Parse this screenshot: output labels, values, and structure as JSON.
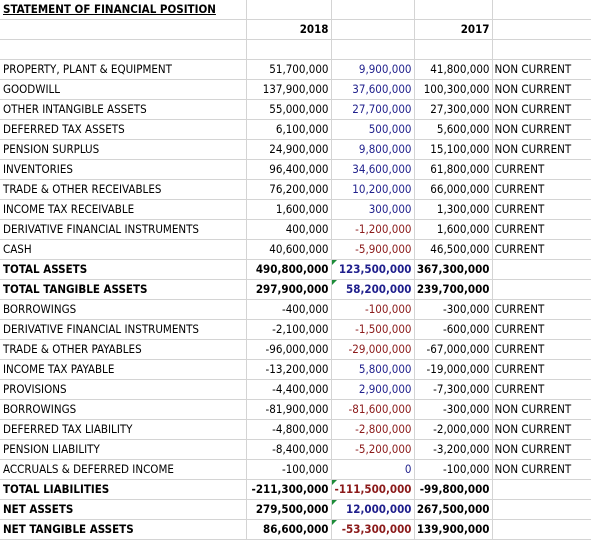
{
  "sheet": {
    "title": "STATEMENT OF FINANCIAL POSITION",
    "year_current": "2018",
    "year_prior": "2017",
    "rows": [
      {
        "label": "PROPERTY, PLANT & EQUIPMENT",
        "y2018": "51,700,000",
        "change": "9,900,000",
        "y2017": "41,800,000",
        "class": "NON CURRENT"
      },
      {
        "label": "GOODWILL",
        "y2018": "137,900,000",
        "change": "37,600,000",
        "y2017": "100,300,000",
        "class": "NON CURRENT"
      },
      {
        "label": "OTHER INTANGIBLE ASSETS",
        "y2018": "55,000,000",
        "change": "27,700,000",
        "y2017": "27,300,000",
        "class": "NON CURRENT"
      },
      {
        "label": "DEFERRED TAX ASSETS",
        "y2018": "6,100,000",
        "change": "500,000",
        "y2017": "5,600,000",
        "class": "NON CURRENT"
      },
      {
        "label": "PENSION SURPLUS",
        "y2018": "24,900,000",
        "change": "9,800,000",
        "y2017": "15,100,000",
        "class": "NON CURRENT"
      },
      {
        "label": "INVENTORIES",
        "y2018": "96,400,000",
        "change": "34,600,000",
        "y2017": "61,800,000",
        "class": "CURRENT"
      },
      {
        "label": "TRADE & OTHER RECEIVABLES",
        "y2018": "76,200,000",
        "change": "10,200,000",
        "y2017": "66,000,000",
        "class": "CURRENT"
      },
      {
        "label": "INCOME TAX RECEIVABLE",
        "y2018": "1,600,000",
        "change": "300,000",
        "y2017": "1,300,000",
        "class": "CURRENT"
      },
      {
        "label": "DERIVATIVE FINANCIAL INSTRUMENTS",
        "y2018": "400,000",
        "change": "-1,200,000",
        "y2017": "1,600,000",
        "class": "CURRENT"
      },
      {
        "label": "CASH",
        "y2018": "40,600,000",
        "change": "-5,900,000",
        "y2017": "46,500,000",
        "class": "CURRENT"
      },
      {
        "label": "TOTAL ASSETS",
        "y2018": "490,800,000",
        "change": "123,500,000",
        "y2017": "367,300,000",
        "class": "",
        "total": true,
        "flag": true
      },
      {
        "label": "TOTAL TANGIBLE ASSETS",
        "y2018": "297,900,000",
        "change": "58,200,000",
        "y2017": "239,700,000",
        "class": "",
        "total": true,
        "flag": true
      },
      {
        "label": "BORROWINGS",
        "y2018": "-400,000",
        "change": "-100,000",
        "y2017": "-300,000",
        "class": "CURRENT"
      },
      {
        "label": "DERIVATIVE FINANCIAL INSTRUMENTS",
        "y2018": "-2,100,000",
        "change": "-1,500,000",
        "y2017": "-600,000",
        "class": "CURRENT"
      },
      {
        "label": "TRADE & OTHER PAYABLES",
        "y2018": "-96,000,000",
        "change": "-29,000,000",
        "y2017": "-67,000,000",
        "class": "CURRENT"
      },
      {
        "label": "INCOME TAX PAYABLE",
        "y2018": "-13,200,000",
        "change": "5,800,000",
        "y2017": "-19,000,000",
        "class": "CURRENT"
      },
      {
        "label": "PROVISIONS",
        "y2018": "-4,400,000",
        "change": "2,900,000",
        "y2017": "-7,300,000",
        "class": "CURRENT"
      },
      {
        "label": "BORROWINGS",
        "y2018": "-81,900,000",
        "change": "-81,600,000",
        "y2017": "-300,000",
        "class": "NON CURRENT"
      },
      {
        "label": "DEFERRED TAX LIABILITY",
        "y2018": "-4,800,000",
        "change": "-2,800,000",
        "y2017": "-2,000,000",
        "class": "NON CURRENT"
      },
      {
        "label": "PENSION LIABILITY",
        "y2018": "-8,400,000",
        "change": "-5,200,000",
        "y2017": "-3,200,000",
        "class": "NON CURRENT"
      },
      {
        "label": "ACCRUALS & DEFERRED INCOME",
        "y2018": "-100,000",
        "change": "0",
        "y2017": "-100,000",
        "class": "NON CURRENT"
      },
      {
        "label": "TOTAL LIABILITIES",
        "y2018": "-211,300,000",
        "change": "-111,500,000",
        "y2017": "-99,800,000",
        "class": "",
        "total": true,
        "flag": true
      },
      {
        "label": "NET ASSETS",
        "y2018": "279,500,000",
        "change": "12,000,000",
        "y2017": "267,500,000",
        "class": "",
        "total": true,
        "flag": true
      },
      {
        "label": "NET TANGIBLE ASSETS",
        "y2018": "86,600,000",
        "change": "-53,300,000",
        "y2017": "139,900,000",
        "class": "",
        "total": true,
        "flag": true
      }
    ]
  },
  "colors": {
    "positive_change": "#1f1f8c",
    "negative_change": "#8b1a1a",
    "error_flag": "#1e8c3a"
  }
}
